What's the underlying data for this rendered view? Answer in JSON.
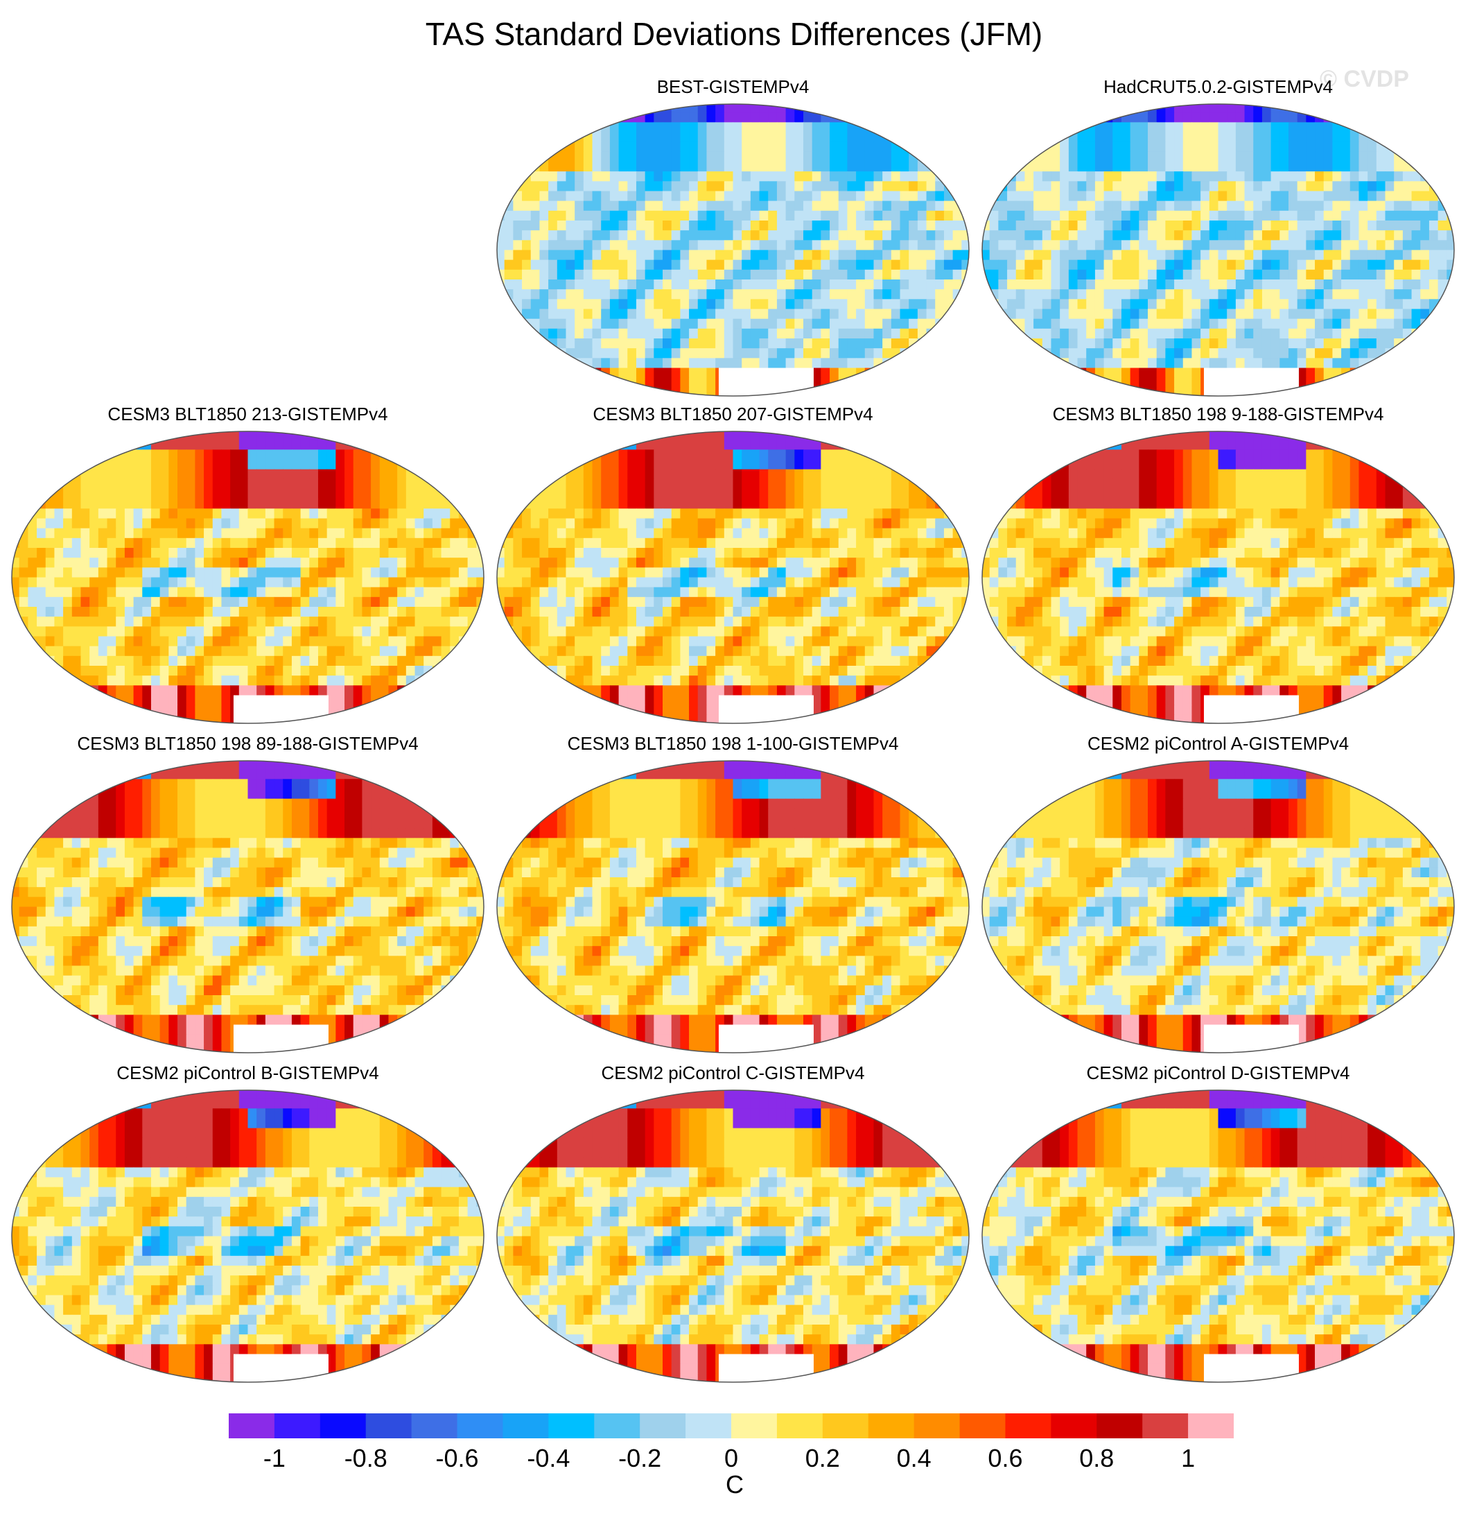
{
  "title": "TAS Standard Deviations Differences (JFM)",
  "watermark": "© CVDP",
  "chart_data": {
    "type": "heatmap",
    "projection": "robinson",
    "season": "JFM",
    "panels": [
      {
        "title": "BEST-GISTEMPv4",
        "regime": "obs"
      },
      {
        "title": "HadCRUT5.0.2-GISTEMPv4",
        "regime": "obs"
      },
      {
        "title": "CESM3 BLT1850 213-GISTEMPv4",
        "regime": "model"
      },
      {
        "title": "CESM3 BLT1850 207-GISTEMPv4",
        "regime": "model"
      },
      {
        "title": "CESM3 BLT1850 198 9-188-GISTEMPv4",
        "regime": "model"
      },
      {
        "title": "CESM3 BLT1850 198 89-188-GISTEMPv4",
        "regime": "model"
      },
      {
        "title": "CESM3 BLT1850 198 1-100-GISTEMPv4",
        "regime": "model"
      },
      {
        "title": "CESM2 piControl A-GISTEMPv4",
        "regime": "model2"
      },
      {
        "title": "CESM2 piControl B-GISTEMPv4",
        "regime": "model2"
      },
      {
        "title": "CESM2 piControl C-GISTEMPv4",
        "regime": "model2"
      },
      {
        "title": "CESM2 piControl D-GISTEMPv4",
        "regime": "model2"
      }
    ],
    "colorbar": {
      "units": "C",
      "levels": [
        -1.1,
        -1,
        -0.9,
        -0.8,
        -0.7,
        -0.6,
        -0.5,
        -0.4,
        -0.3,
        -0.2,
        -0.1,
        0,
        0.1,
        0.2,
        0.3,
        0.4,
        0.5,
        0.6,
        0.7,
        0.8,
        0.9,
        1,
        1.1
      ],
      "tick_labels": [
        "-1",
        "-0.8",
        "-0.6",
        "-0.4",
        "-0.2",
        "0",
        "0.2",
        "0.4",
        "0.6",
        "0.8",
        "1"
      ],
      "colors": [
        "#8a2be8",
        "#3d1aff",
        "#0a0aff",
        "#2e4de0",
        "#3e6fe6",
        "#2f8ef5",
        "#18a3f7",
        "#00bfff",
        "#56c3f2",
        "#9fd1ec",
        "#c0e3f6",
        "#fff59e",
        "#ffe448",
        "#ffc81e",
        "#ffaa00",
        "#ff8c00",
        "#ff5a00",
        "#ff1e00",
        "#e60000",
        "#c00000",
        "#d94040",
        "#ffb3bd"
      ]
    }
  }
}
